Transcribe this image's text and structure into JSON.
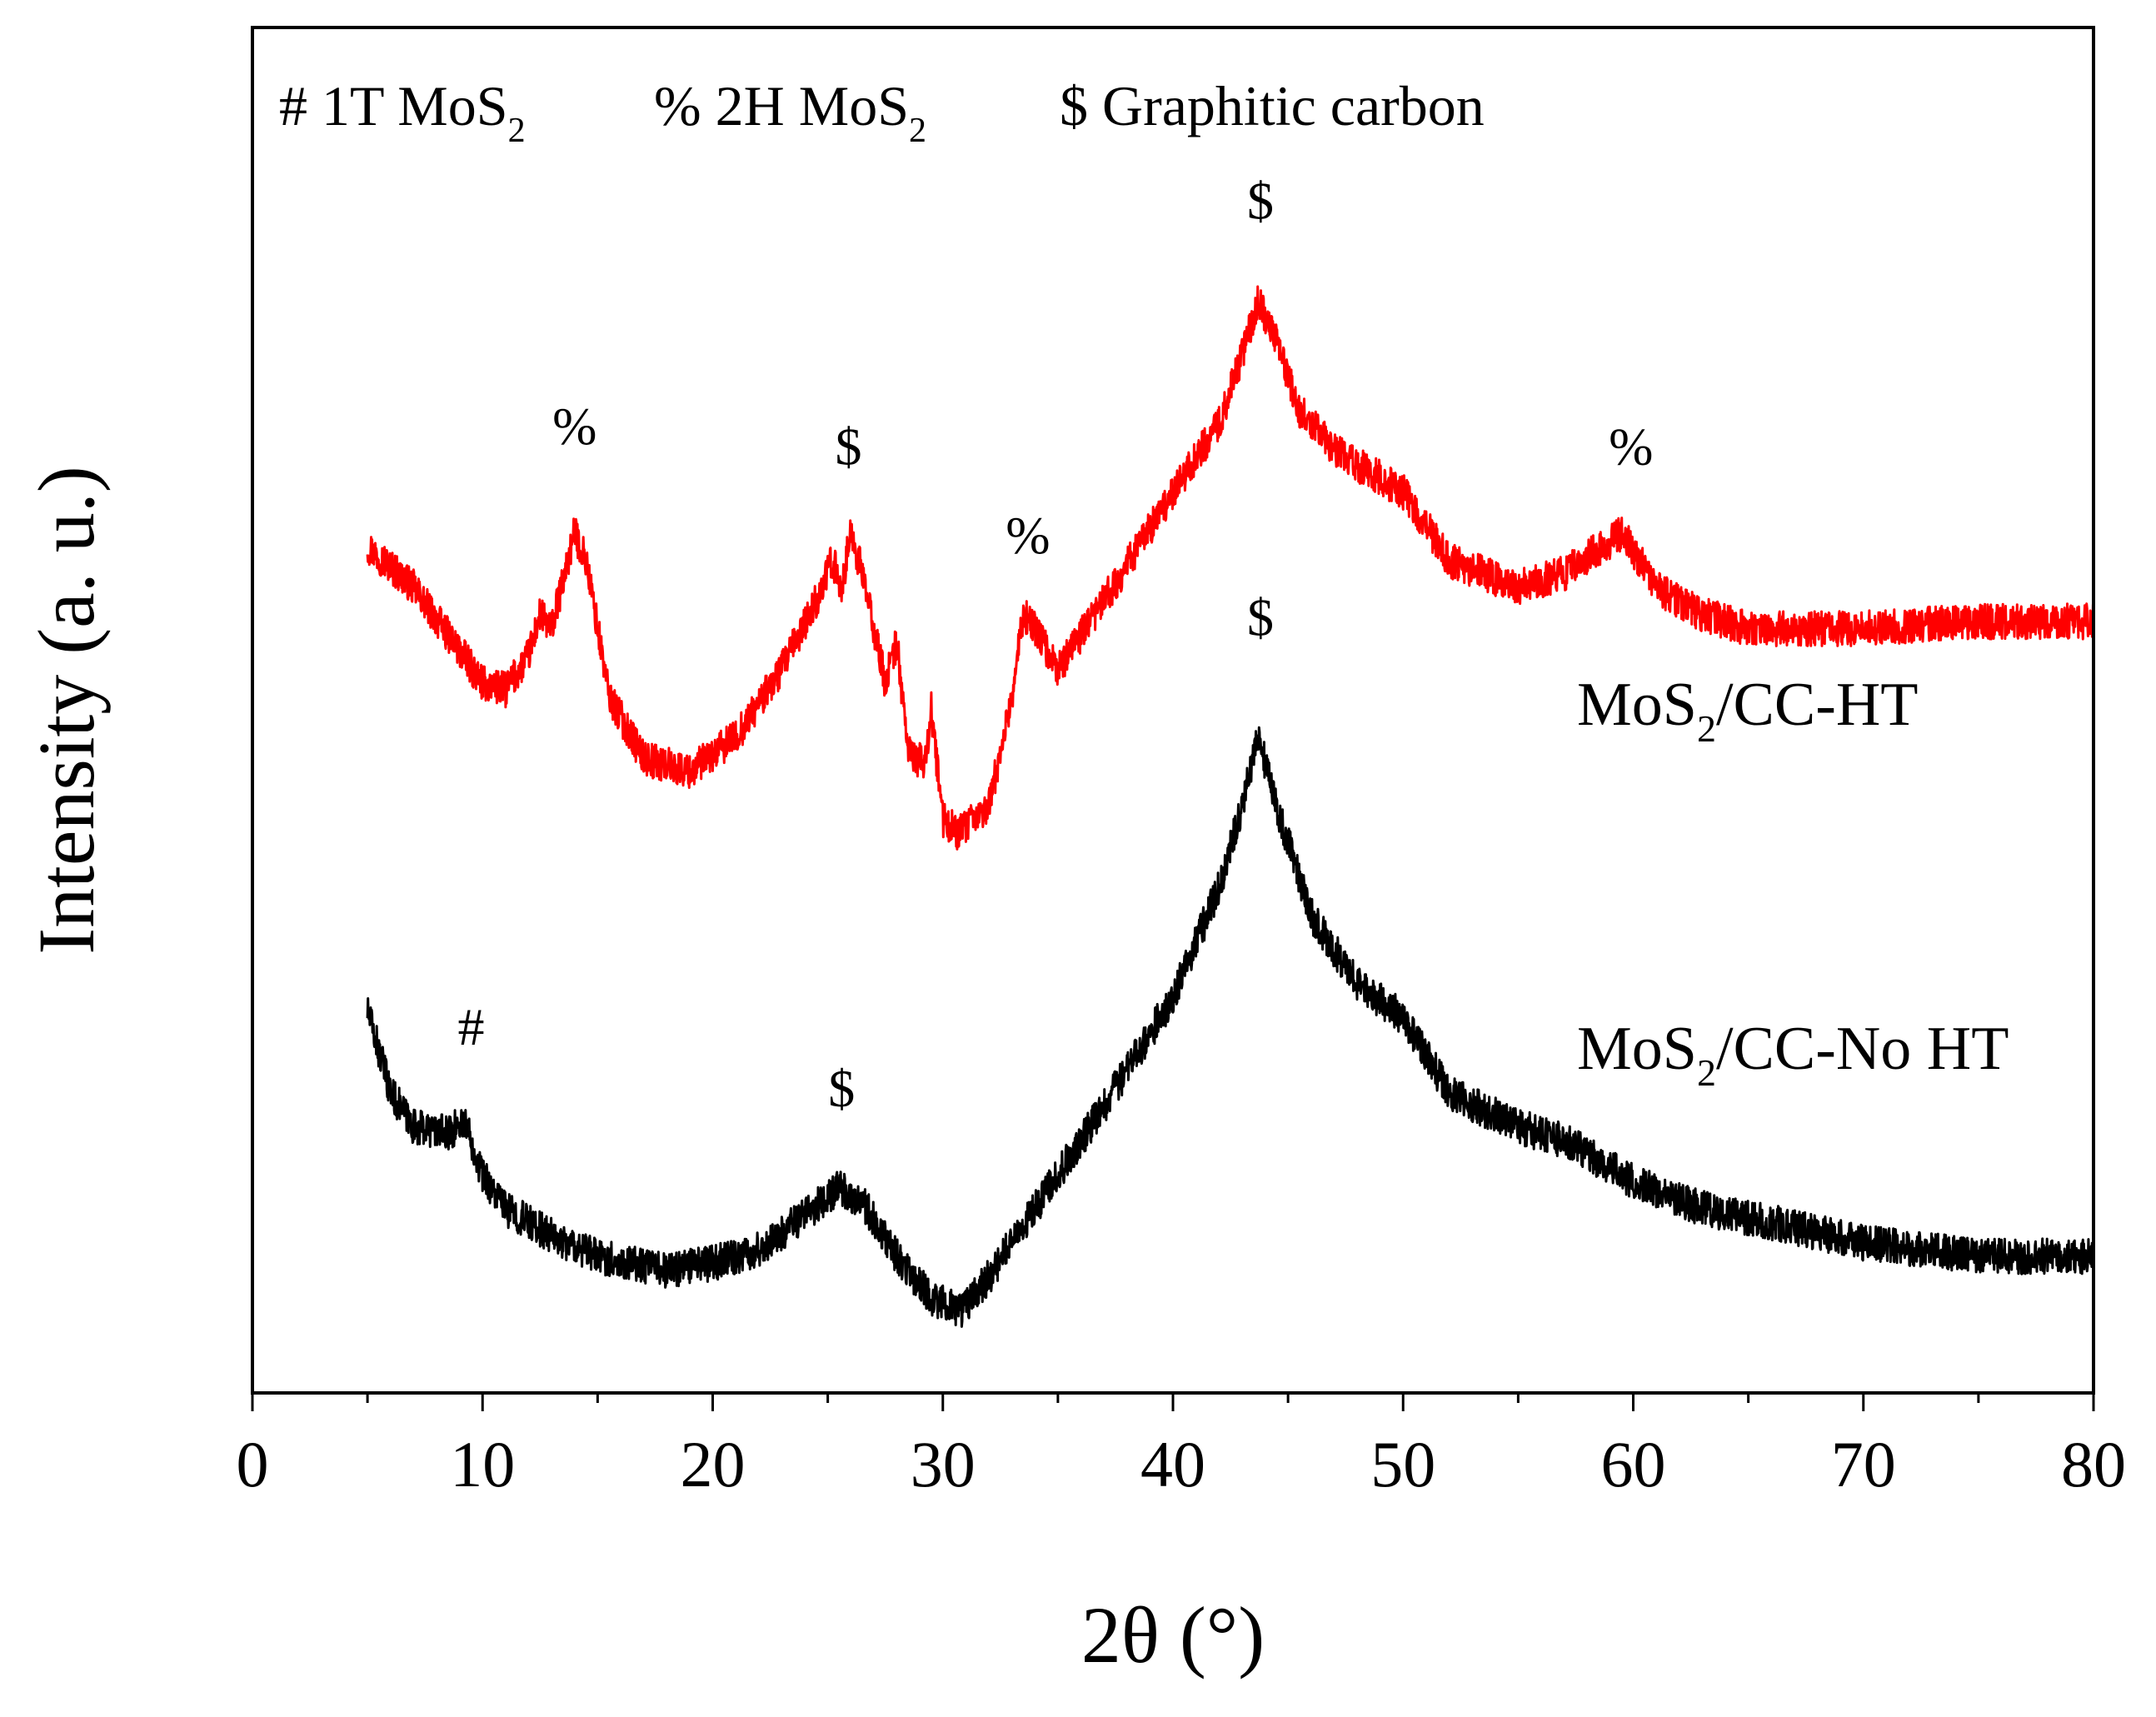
{
  "chart_data": {
    "type": "line",
    "title": "",
    "xlabel": "2θ (°)",
    "ylabel": "Intensity (a. u.)",
    "xlim": [
      0,
      80
    ],
    "ylim": [
      0,
      100
    ],
    "x_ticks": [
      0,
      10,
      20,
      30,
      40,
      50,
      60,
      70,
      80
    ],
    "y_ticks_shown": false,
    "legend": {
      "placement": "top-left",
      "entries": [
        {
          "symbol": "#",
          "phase": "1T MoS",
          "sub": "2"
        },
        {
          "symbol": "%",
          "phase": "2H MoS",
          "sub": "2"
        },
        {
          "symbol": "$",
          "phase": "Graphitic carbon",
          "sub": ""
        }
      ]
    },
    "series": [
      {
        "name": "MoS2/CC-HT",
        "label_main": "MoS",
        "label_sub": "2",
        "label_rest": "/CC-HT",
        "color": "#ff0000",
        "noise": 1.3,
        "anchors": [
          [
            5,
            62
          ],
          [
            7,
            59
          ],
          [
            10,
            52
          ],
          [
            11,
            51.5
          ],
          [
            12,
            54
          ],
          [
            12.5,
            57
          ],
          [
            13,
            56
          ],
          [
            14,
            63
          ],
          [
            14.5,
            61
          ],
          [
            15.5,
            51
          ],
          [
            17,
            46.5
          ],
          [
            19,
            45.5
          ],
          [
            21,
            48
          ],
          [
            23,
            53
          ],
          [
            24.5,
            58
          ],
          [
            25.2,
            61
          ],
          [
            25.6,
            59
          ],
          [
            26,
            63
          ],
          [
            26.5,
            60
          ],
          [
            27.5,
            52
          ],
          [
            28,
            55
          ],
          [
            28.5,
            47
          ],
          [
            29.2,
            46
          ],
          [
            29.5,
            50
          ],
          [
            30,
            42
          ],
          [
            30.7,
            41
          ],
          [
            32,
            43
          ],
          [
            33,
            51
          ],
          [
            33.5,
            57
          ],
          [
            34,
            56
          ],
          [
            35,
            53
          ],
          [
            37,
            58
          ],
          [
            40,
            66
          ],
          [
            42,
            71
          ],
          [
            43,
            76
          ],
          [
            43.7,
            80
          ],
          [
            44.5,
            77
          ],
          [
            45.5,
            72
          ],
          [
            47,
            69
          ],
          [
            50,
            66
          ],
          [
            52,
            61
          ],
          [
            55,
            59
          ],
          [
            57,
            60
          ],
          [
            59.5,
            63
          ],
          [
            61,
            59
          ],
          [
            63,
            57
          ],
          [
            65,
            56
          ],
          [
            70,
            56
          ],
          [
            75,
            56.5
          ],
          [
            80,
            56.5
          ]
        ]
      },
      {
        "name": "MoS2/CC-No HT",
        "label_main": "MoS",
        "label_sub": "2",
        "label_rest": "/CC-No HT",
        "color": "#000000",
        "noise": 1.3,
        "anchors": [
          [
            5,
            28
          ],
          [
            6,
            22
          ],
          [
            7,
            19.5
          ],
          [
            8.5,
            19
          ],
          [
            9.2,
            20
          ],
          [
            10,
            16
          ],
          [
            11,
            13.5
          ],
          [
            13,
            11.5
          ],
          [
            15,
            10
          ],
          [
            18,
            9
          ],
          [
            20,
            9.5
          ],
          [
            22,
            10.5
          ],
          [
            24,
            13
          ],
          [
            25.5,
            15
          ],
          [
            26.5,
            14
          ],
          [
            28,
            10
          ],
          [
            29.5,
            7
          ],
          [
            30.8,
            6
          ],
          [
            32,
            8.5
          ],
          [
            34,
            13.5
          ],
          [
            37,
            21
          ],
          [
            40,
            29
          ],
          [
            42,
            37
          ],
          [
            43,
            43
          ],
          [
            43.7,
            48
          ],
          [
            44.5,
            43
          ],
          [
            46,
            35
          ],
          [
            48,
            30
          ],
          [
            50,
            27.5
          ],
          [
            52,
            22
          ],
          [
            55,
            19.5
          ],
          [
            57,
            18.5
          ],
          [
            60,
            15.5
          ],
          [
            63,
            13.5
          ],
          [
            66,
            12.5
          ],
          [
            70,
            11
          ],
          [
            75,
            10
          ],
          [
            80,
            10
          ]
        ]
      }
    ],
    "annotations": [
      {
        "text": "%",
        "x": 14,
        "y": 69.5
      },
      {
        "text": "$",
        "x": 25.9,
        "y": 68
      },
      {
        "text": "%",
        "x": 33.7,
        "y": 61.5
      },
      {
        "text": "$",
        "x": 43.8,
        "y": 86
      },
      {
        "text": "%",
        "x": 59.9,
        "y": 68
      },
      {
        "text": "$",
        "x": 43.8,
        "y": 55.5
      },
      {
        "text": "#",
        "x": 9.5,
        "y": 25.5
      },
      {
        "text": "$",
        "x": 25.6,
        "y": 21
      }
    ]
  }
}
